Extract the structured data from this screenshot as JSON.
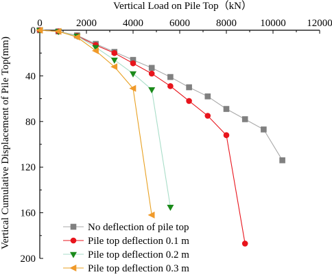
{
  "chart_data": {
    "type": "line",
    "xlabel": "Vertical Load on Pile Top（kN）",
    "ylabel": "Vertical Cumulative Displacement of Pile Top(mm)",
    "x_axis_position": "top",
    "y_inverted": true,
    "xlim": [
      0,
      12000
    ],
    "ylim": [
      0,
      200
    ],
    "xticks": [
      "0",
      "2000",
      "4000",
      "6000",
      "8000",
      "10000",
      "12000"
    ],
    "yticks": [
      "0",
      "40",
      "80",
      "120",
      "160",
      "200"
    ],
    "grid": false,
    "legend_position": "bottom-left",
    "series": [
      {
        "name": "No deflection of pile top",
        "color": "#808080",
        "line_color": "#a9a9a9",
        "marker": "square",
        "x": [
          0,
          800,
          1600,
          2400,
          3200,
          4000,
          4800,
          5600,
          6400,
          7200,
          8000,
          8800,
          9600,
          10400
        ],
        "y": [
          0,
          1,
          4.5,
          12,
          19,
          26,
          33,
          41,
          50,
          58,
          69,
          78,
          87,
          114
        ]
      },
      {
        "name": "Pile top deflection 0.1 m",
        "color": "#e8141c",
        "line_color": "#e8141c",
        "marker": "circle",
        "x": [
          0,
          800,
          1600,
          2400,
          3200,
          4000,
          4800,
          5600,
          6400,
          7200,
          8000,
          8800
        ],
        "y": [
          0,
          1,
          5,
          13,
          20,
          29,
          38,
          49,
          62,
          75,
          92,
          187
        ]
      },
      {
        "name": "Pile top deflection 0.2 m",
        "color": "#1a8a1a",
        "line_color": "#a8ddc8",
        "marker": "triangle-down",
        "x": [
          0,
          800,
          1600,
          2400,
          3200,
          4000,
          4800,
          5600
        ],
        "y": [
          0,
          1,
          5,
          15,
          26,
          38,
          52,
          155
        ]
      },
      {
        "name": "Pile top deflection 0.3 m",
        "color": "#f09a2a",
        "line_color": "#e8a020",
        "marker": "triangle-left",
        "x": [
          0,
          800,
          1600,
          2400,
          3200,
          4000,
          4800
        ],
        "y": [
          0,
          1,
          6,
          18,
          32,
          51,
          162
        ]
      }
    ]
  }
}
